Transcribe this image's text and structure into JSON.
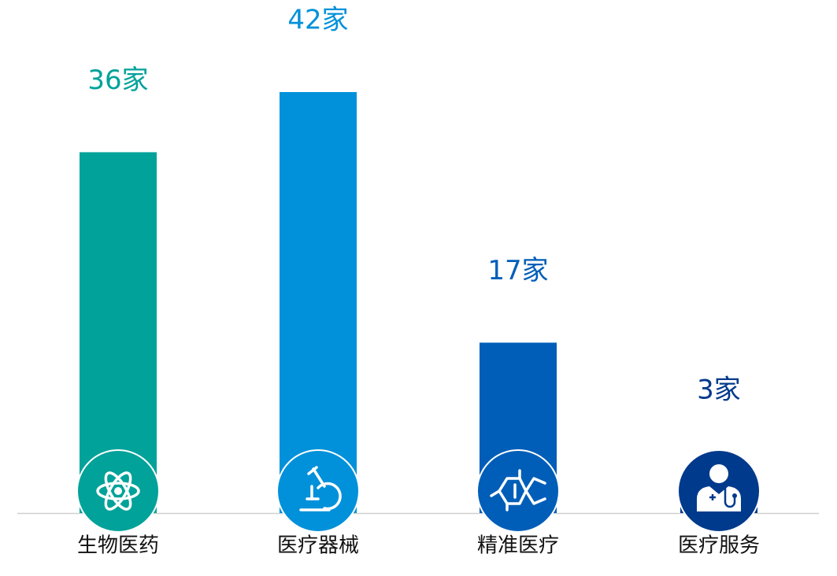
{
  "chart_data": {
    "type": "bar",
    "categories": [
      "生物医药",
      "医疗器械",
      "精准医疗",
      "医疗服务"
    ],
    "values": [
      36,
      42,
      17,
      3
    ],
    "value_labels": [
      "36家",
      "42家",
      "17家",
      "3家"
    ],
    "colors": [
      "#00a29a",
      "#0091da",
      "#005eb8",
      "#003a8c"
    ]
  }
}
